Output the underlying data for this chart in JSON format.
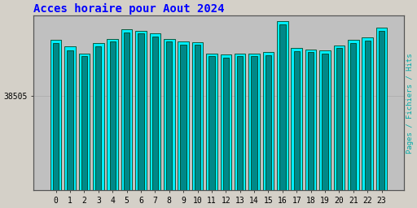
{
  "title": "Acces horaire pour Aout 2024",
  "title_color": "#0000ff",
  "title_fontsize": 10,
  "ylabel_right": "Pages / Fichiers / Hits",
  "ylabel_right_color": "#00aaaa",
  "background_color": "#d4d0c8",
  "plot_bg_color": "#c0c0c0",
  "bar_cyan_color": "#00eeff",
  "bar_teal_color": "#008888",
  "bar_edge_color": "#004422",
  "ytick_label": "38505",
  "ytick_value": 38505,
  "ylim_min": 37800,
  "ylim_max": 39100,
  "ytick_pos": 38505,
  "hours": [
    0,
    1,
    2,
    3,
    4,
    5,
    6,
    7,
    8,
    9,
    10,
    11,
    12,
    13,
    14,
    15,
    16,
    17,
    18,
    19,
    20,
    21,
    22,
    23
  ],
  "hits": [
    38920,
    38870,
    38820,
    38900,
    38930,
    39000,
    38990,
    38970,
    38930,
    38910,
    38905,
    38820,
    38810,
    38820,
    38820,
    38830,
    39060,
    38860,
    38850,
    38840,
    38880,
    38920,
    38940,
    39010
  ],
  "pages": [
    38895,
    38845,
    38800,
    38875,
    38908,
    38978,
    38968,
    38948,
    38908,
    38888,
    38882,
    38798,
    38788,
    38798,
    38798,
    38808,
    39038,
    38838,
    38828,
    38818,
    38858,
    38898,
    38918,
    38988
  ]
}
